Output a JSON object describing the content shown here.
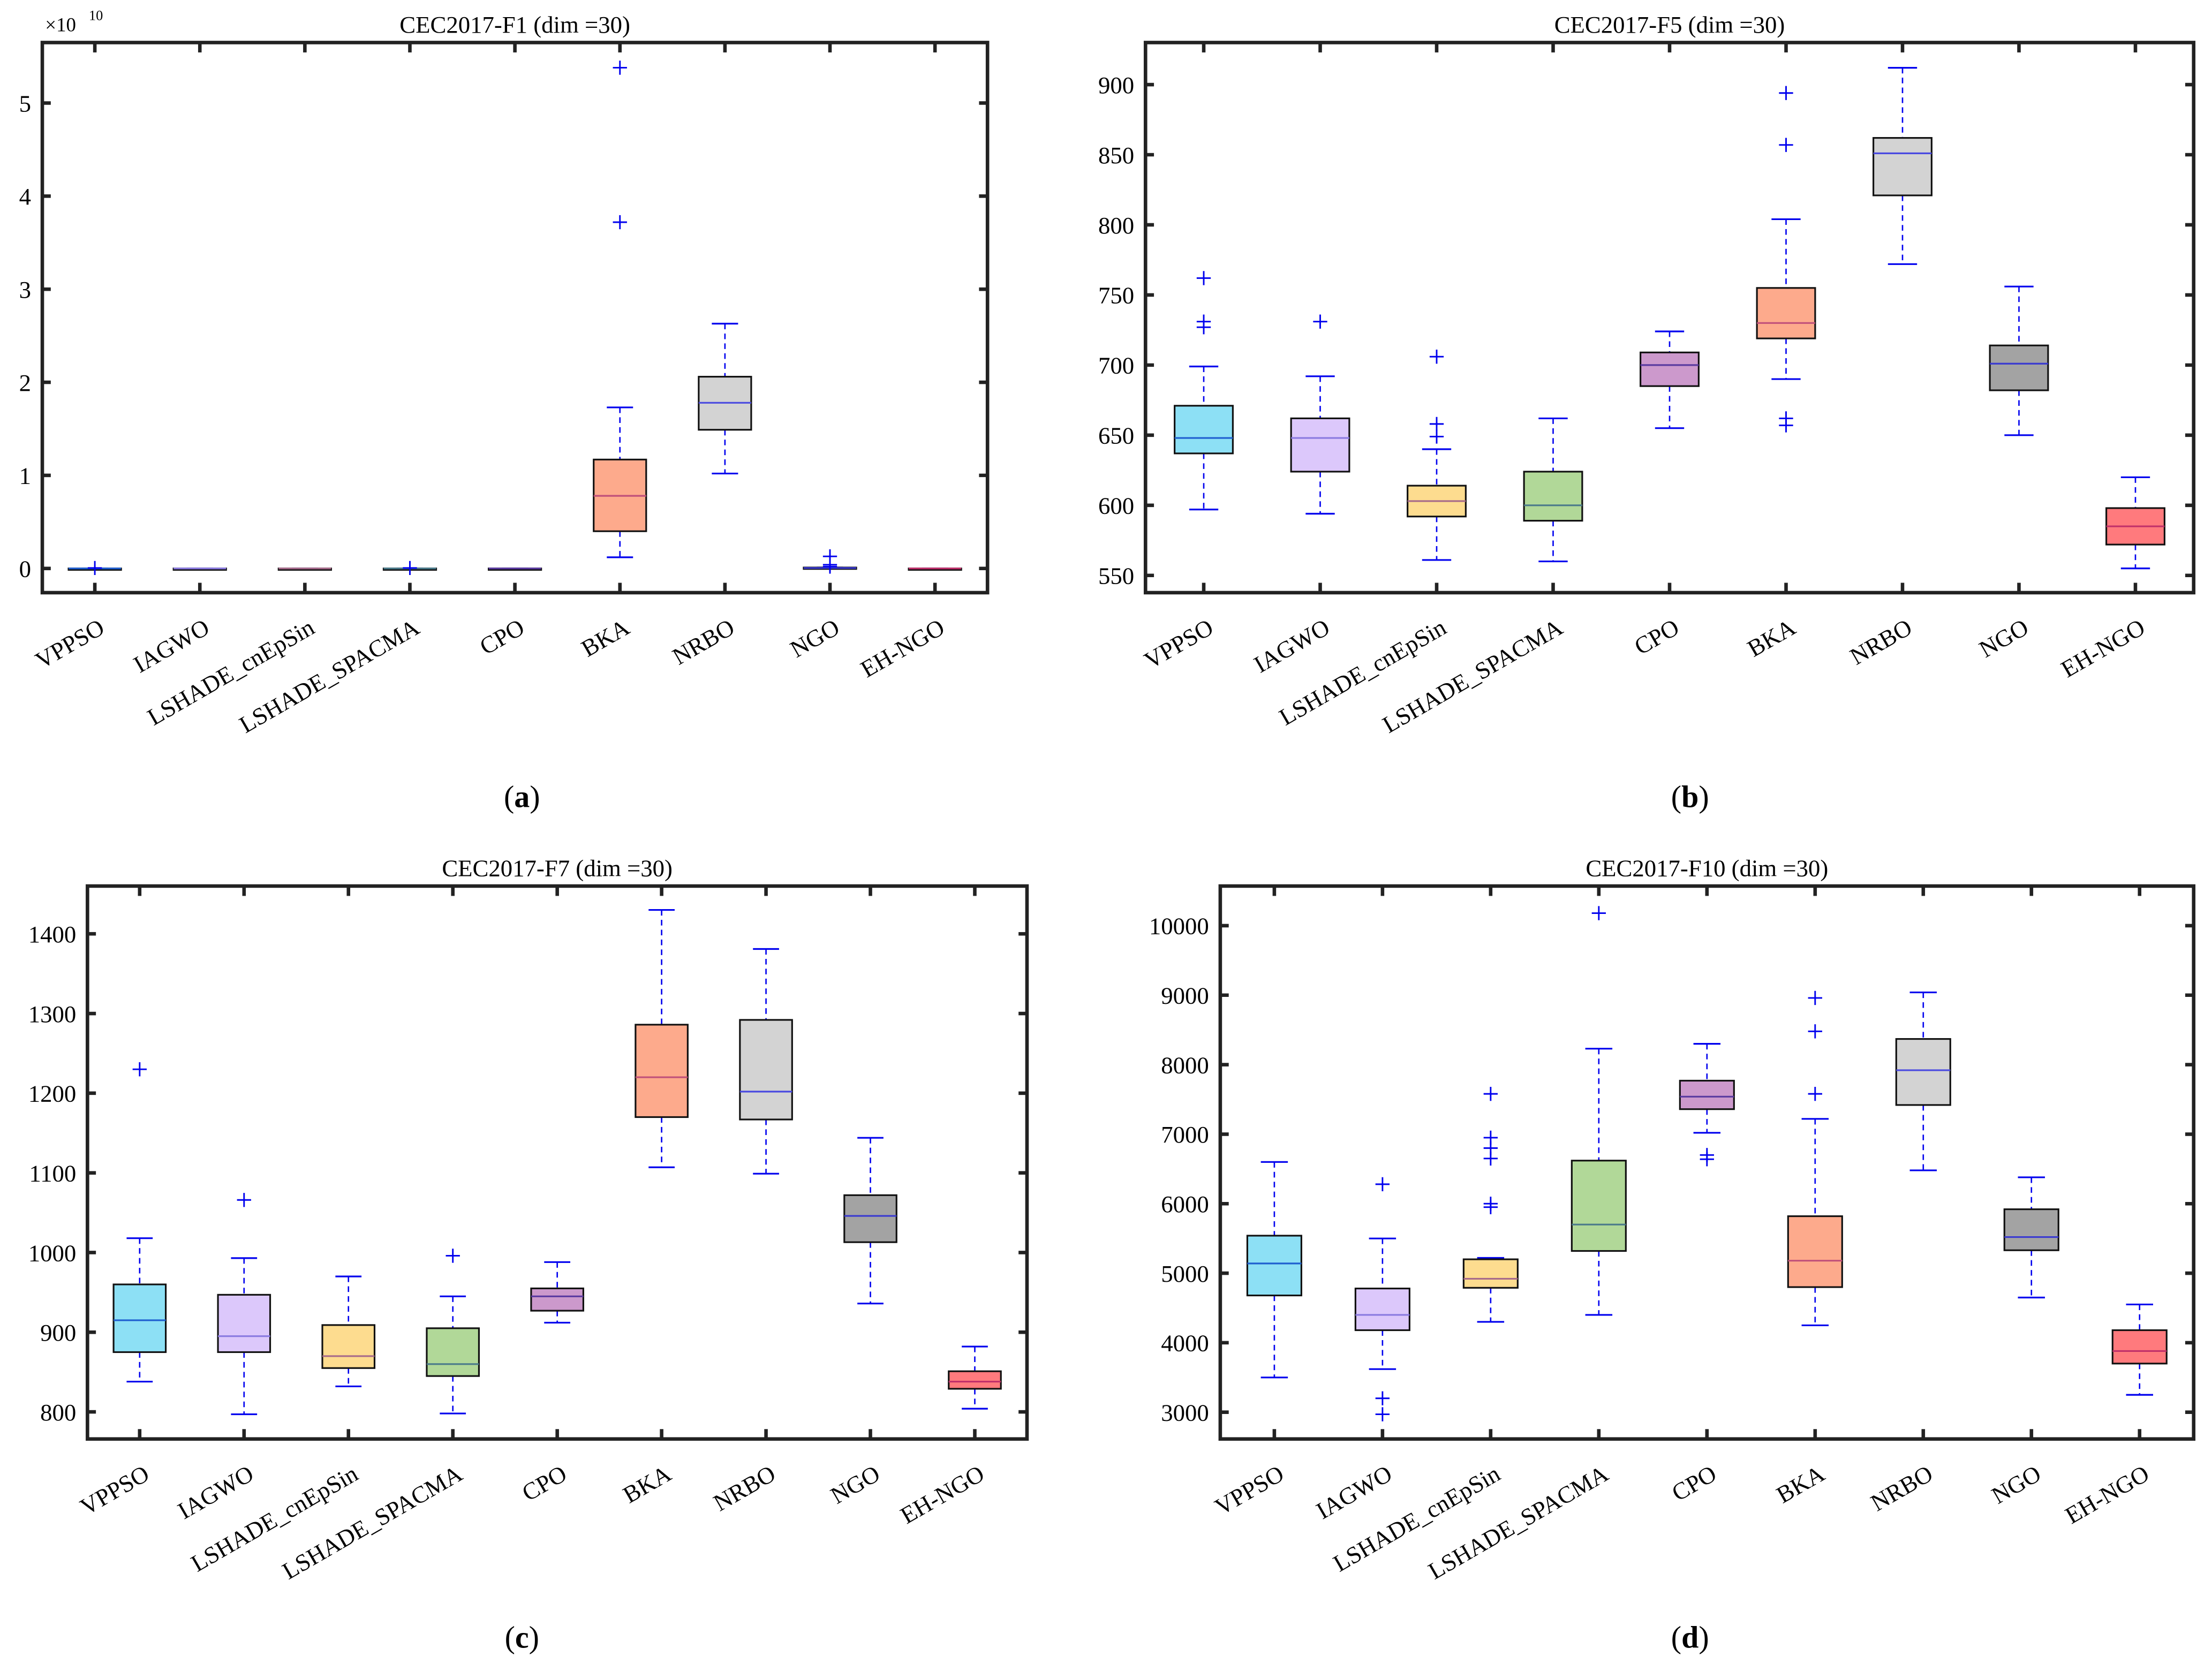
{
  "algorithms": [
    "VPPSO",
    "IAGWO",
    "LSHADE_cnEpSin",
    "LSHADE_SPACMA",
    "CPO",
    "BKA",
    "NRBO",
    "NGO",
    "EH-NGO"
  ],
  "colors": [
    "#8de0f5",
    "#dcc8fb",
    "#fddc8f",
    "#b1d898",
    "#cc99cc",
    "#fdaa8c",
    "#d3d3d3",
    "#a3a3a3",
    "#ff7a7d"
  ],
  "median_colors": [
    "#1f5fd0",
    "#8a7ae0",
    "#a66a8a",
    "#4a7a8a",
    "#5a3aa0",
    "#c0507a",
    "#4a4ae0",
    "#3a3ad0",
    "#c0306a"
  ],
  "chart_data": [
    {
      "type": "box",
      "caption": "a",
      "title": "CEC2017-F1 (dim =30)",
      "exponent_label": "×10",
      "exponent": "10",
      "ylim": [
        -0.26,
        5.65
      ],
      "yticks": [
        0,
        1,
        2,
        3,
        4,
        5
      ],
      "ytick_labels": [
        "0",
        "1",
        "2",
        "3",
        "4",
        "5"
      ],
      "boxes": [
        {
          "min": 0,
          "q1": 0,
          "median": 0,
          "q3": 0,
          "max": 0,
          "outliers": [
            0.005
          ]
        },
        {
          "min": 0,
          "q1": 0,
          "median": 0,
          "q3": 0,
          "max": 0,
          "outliers": []
        },
        {
          "min": 0,
          "q1": 0,
          "median": 0,
          "q3": 0,
          "max": 0,
          "outliers": []
        },
        {
          "min": 0,
          "q1": 0,
          "median": 0,
          "q3": 0,
          "max": 0,
          "outliers": [
            0.005
          ]
        },
        {
          "min": 0,
          "q1": 0,
          "median": 0,
          "q3": 0,
          "max": 0,
          "outliers": []
        },
        {
          "min": 0.12,
          "q1": 0.4,
          "median": 0.78,
          "q3": 1.17,
          "max": 1.73,
          "outliers": [
            3.72,
            5.38
          ]
        },
        {
          "min": 1.02,
          "q1": 1.49,
          "median": 1.78,
          "q3": 2.06,
          "max": 2.63,
          "outliers": []
        },
        {
          "min": 0,
          "q1": 0,
          "median": 0.005,
          "q3": 0.01,
          "max": 0.01,
          "outliers": [
            0.02,
            0.04,
            0.13
          ]
        },
        {
          "min": 0,
          "q1": 0,
          "median": 0,
          "q3": 0,
          "max": 0,
          "outliers": []
        }
      ]
    },
    {
      "type": "box",
      "caption": "b",
      "title": "CEC2017-F5 (dim =30)",
      "ylim": [
        537.7,
        930
      ],
      "yticks": [
        550,
        600,
        650,
        700,
        750,
        800,
        850,
        900
      ],
      "ytick_labels": [
        "550",
        "600",
        "650",
        "700",
        "750",
        "800",
        "850",
        "900"
      ],
      "boxes": [
        {
          "min": 597,
          "q1": 637,
          "median": 648,
          "q3": 671,
          "max": 699,
          "outliers": [
            762,
            731,
            727
          ]
        },
        {
          "min": 594,
          "q1": 624,
          "median": 648,
          "q3": 662,
          "max": 692,
          "outliers": [
            731
          ]
        },
        {
          "min": 561,
          "q1": 592,
          "median": 603,
          "q3": 614,
          "max": 640,
          "outliers": [
            706,
            658,
            649
          ]
        },
        {
          "min": 560,
          "q1": 589,
          "median": 600,
          "q3": 624,
          "max": 662,
          "outliers": []
        },
        {
          "min": 655,
          "q1": 685,
          "median": 700,
          "q3": 709,
          "max": 724,
          "outliers": []
        },
        {
          "min": 690,
          "q1": 719,
          "median": 730,
          "q3": 755,
          "max": 804,
          "outliers": [
            894,
            857,
            662,
            657
          ]
        },
        {
          "min": 772,
          "q1": 821,
          "median": 851,
          "q3": 862,
          "max": 912,
          "outliers": []
        },
        {
          "min": 650,
          "q1": 682,
          "median": 701,
          "q3": 714,
          "max": 756,
          "outliers": []
        },
        {
          "min": 555,
          "q1": 572,
          "median": 585,
          "q3": 598,
          "max": 620,
          "outliers": []
        }
      ]
    },
    {
      "type": "box",
      "caption": "c",
      "title": "CEC2017-F7 (dim =30)",
      "ylim": [
        766,
        1460
      ],
      "yticks": [
        800,
        900,
        1000,
        1100,
        1200,
        1300,
        1400
      ],
      "ytick_labels": [
        "800",
        "900",
        "1000",
        "1100",
        "1200",
        "1300",
        "1400"
      ],
      "boxes": [
        {
          "min": 838,
          "q1": 875,
          "median": 915,
          "q3": 960,
          "max": 1018,
          "outliers": [
            1230
          ]
        },
        {
          "min": 797,
          "q1": 875,
          "median": 895,
          "q3": 947,
          "max": 993,
          "outliers": [
            1066
          ]
        },
        {
          "min": 832,
          "q1": 855,
          "median": 870,
          "q3": 909,
          "max": 970,
          "outliers": []
        },
        {
          "min": 798,
          "q1": 845,
          "median": 860,
          "q3": 905,
          "max": 945,
          "outliers": [
            996
          ]
        },
        {
          "min": 912,
          "q1": 927,
          "median": 945,
          "q3": 955,
          "max": 988,
          "outliers": []
        },
        {
          "min": 1107,
          "q1": 1170,
          "median": 1220,
          "q3": 1286,
          "max": 1430,
          "outliers": []
        },
        {
          "min": 1099,
          "q1": 1167,
          "median": 1202,
          "q3": 1292,
          "max": 1381,
          "outliers": []
        },
        {
          "min": 936,
          "q1": 1013,
          "median": 1046,
          "q3": 1072,
          "max": 1144,
          "outliers": []
        },
        {
          "min": 804,
          "q1": 829,
          "median": 838,
          "q3": 851,
          "max": 882,
          "outliers": []
        }
      ]
    },
    {
      "type": "box",
      "caption": "d",
      "title": "CEC2017-F10 (dim =30)",
      "ylim": [
        2615,
        10570
      ],
      "yticks": [
        3000,
        4000,
        5000,
        6000,
        7000,
        8000,
        9000,
        10000
      ],
      "ytick_labels": [
        "3000",
        "4000",
        "5000",
        "6000",
        "7000",
        "8000",
        "9000",
        "10000"
      ],
      "boxes": [
        {
          "min": 3500,
          "q1": 4680,
          "median": 5140,
          "q3": 5540,
          "max": 6600,
          "outliers": []
        },
        {
          "min": 3620,
          "q1": 4180,
          "median": 4400,
          "q3": 4780,
          "max": 5500,
          "outliers": [
            6280,
            3200,
            2970
          ]
        },
        {
          "min": 4300,
          "q1": 4790,
          "median": 4920,
          "q3": 5200,
          "max": 5220,
          "outliers": [
            7580,
            6950,
            6800,
            6650,
            6000,
            5950
          ]
        },
        {
          "min": 4400,
          "q1": 5320,
          "median": 5700,
          "q3": 6620,
          "max": 8230,
          "outliers": [
            10180
          ]
        },
        {
          "min": 7020,
          "q1": 7360,
          "median": 7540,
          "q3": 7770,
          "max": 8300,
          "outliers": [
            6700,
            6640
          ]
        },
        {
          "min": 4250,
          "q1": 4800,
          "median": 5180,
          "q3": 5820,
          "max": 7220,
          "outliers": [
            8960,
            8480,
            7580
          ]
        },
        {
          "min": 6480,
          "q1": 7420,
          "median": 7920,
          "q3": 8370,
          "max": 9040,
          "outliers": []
        },
        {
          "min": 4650,
          "q1": 5330,
          "median": 5520,
          "q3": 5920,
          "max": 6380,
          "outliers": []
        },
        {
          "min": 3250,
          "q1": 3700,
          "median": 3880,
          "q3": 4180,
          "max": 4550,
          "outliers": []
        }
      ]
    }
  ]
}
